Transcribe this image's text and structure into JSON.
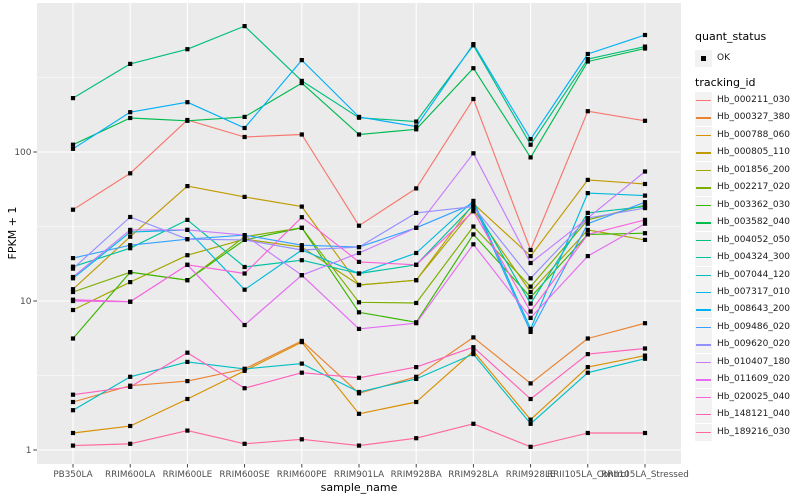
{
  "figure": {
    "x_axis_title": "sample_name",
    "y_axis_title": "FPKM + 1"
  },
  "legend": {
    "quant_status_title": "quant_status",
    "quant_status_value": "OK",
    "tracking_id_title": "tracking_id"
  },
  "chart_data": {
    "type": "line",
    "title": "",
    "xlabel": "sample_name",
    "ylabel": "FPKM + 1",
    "y_scale": "log10",
    "ylim": [
      0.8,
      1000
    ],
    "y_ticks": [
      1,
      10,
      100
    ],
    "y_tick_labels": [
      "1",
      "10",
      "100"
    ],
    "grid": "white-on-gray",
    "panel_background": "#EBEBEB",
    "gridline_color": "#FFFFFF",
    "legend_position": "right",
    "legend_quant_status_title": "quant_status",
    "legend_quant_status_value": "OK",
    "legend_tracking_id_title": "tracking_id",
    "point_shape": "filled-square",
    "point_color": "#000000",
    "categories": [
      "PB350LA",
      "RRIM600LA",
      "RRIM600LE",
      "RRIM600SE",
      "RRIM600PE",
      "RRIM901LA",
      "RRIM928BA",
      "RRIM928LA",
      "RRIM928LE",
      "RRII105LA_Control",
      "RRII105LA_Stressed"
    ],
    "series": [
      {
        "name": "Hb_000211_030",
        "color": "#F8766D",
        "values": [
          41,
          72,
          164,
          126,
          131,
          32,
          57,
          227,
          22,
          188,
          162
        ]
      },
      {
        "name": "Hb_000327_380",
        "color": "#EA8331",
        "values": [
          2.1,
          2.7,
          2.9,
          3.5,
          5.4,
          2.4,
          3.1,
          5.7,
          2.8,
          5.6,
          7.1
        ]
      },
      {
        "name": "Hb_000788_060",
        "color": "#D89000",
        "values": [
          1.3,
          1.45,
          2.2,
          3.4,
          5.3,
          1.75,
          2.1,
          4.6,
          1.6,
          3.6,
          4.3
        ]
      },
      {
        "name": "Hb_000805_110",
        "color": "#C09B00",
        "values": [
          12,
          27,
          59,
          50,
          43,
          12.8,
          13.8,
          45,
          20,
          65,
          61
        ]
      },
      {
        "name": "Hb_001856_200",
        "color": "#A3A500",
        "values": [
          8.7,
          13.4,
          20.3,
          26,
          23,
          12.8,
          13.8,
          41,
          11.5,
          30,
          25.7
        ]
      },
      {
        "name": "Hb_002217_020",
        "color": "#7CAE00",
        "values": [
          11.5,
          15.6,
          13.8,
          27,
          31,
          9.8,
          9.7,
          31.6,
          12.5,
          35,
          44
        ]
      },
      {
        "name": "Hb_003362_030",
        "color": "#39B600",
        "values": [
          5.6,
          15.6,
          13.8,
          25.7,
          31,
          8.4,
          7.2,
          28,
          10.6,
          28,
          28.5
        ]
      },
      {
        "name": "Hb_003582_040",
        "color": "#00BB4E",
        "values": [
          112,
          169,
          162,
          172,
          290,
          131,
          142,
          365,
          92,
          405,
          495
        ]
      },
      {
        "name": "Hb_004052_050",
        "color": "#00BF7D",
        "values": [
          230,
          390,
          490,
          700,
          300,
          170,
          160,
          520,
          112,
          420,
          510
        ]
      },
      {
        "name": "Hb_004324_300",
        "color": "#00C1A3",
        "values": [
          17,
          22.6,
          35,
          16.9,
          18.8,
          15.3,
          17.5,
          44,
          9.6,
          39,
          43
        ]
      },
      {
        "name": "Hb_007044_120",
        "color": "#00BFC4",
        "values": [
          1.85,
          3.1,
          3.9,
          3.5,
          3.8,
          2.45,
          3.0,
          4.4,
          1.5,
          3.3,
          4.1
        ]
      },
      {
        "name": "Hb_007317_010",
        "color": "#00BAE0",
        "values": [
          14.2,
          29,
          30,
          11.9,
          22,
          15.3,
          21,
          47,
          6.5,
          53,
          51
        ]
      },
      {
        "name": "Hb_008643_200",
        "color": "#00B0F6",
        "values": [
          105,
          185,
          216,
          145,
          414,
          172,
          148,
          530,
          122,
          455,
          610
        ]
      },
      {
        "name": "Hb_009486_020",
        "color": "#35A2FF",
        "values": [
          19.4,
          23.7,
          26,
          27.7,
          23.7,
          23,
          31,
          45,
          6.2,
          33,
          46
        ]
      },
      {
        "name": "Hb_009620_020",
        "color": "#9590FF",
        "values": [
          16.5,
          36.6,
          26,
          25.7,
          22,
          23,
          39,
          43,
          14.2,
          36,
          42
        ]
      },
      {
        "name": "Hb_010407_180",
        "color": "#C77CFF",
        "values": [
          14.5,
          30,
          30,
          27.7,
          14.9,
          21,
          31,
          98,
          18,
          36,
          74
        ]
      },
      {
        "name": "Hb_011609_020",
        "color": "#E76BF3",
        "values": [
          10,
          9.9,
          17.5,
          6.9,
          14.9,
          6.5,
          7.1,
          24,
          7.7,
          20,
          33
        ]
      },
      {
        "name": "Hb_020025_040",
        "color": "#FA62DB",
        "values": [
          10.2,
          9.9,
          17.5,
          15.3,
          36.5,
          18.3,
          17.5,
          40,
          8.5,
          28,
          35
        ]
      },
      {
        "name": "Hb_148121_040",
        "color": "#FF62BC",
        "values": [
          2.35,
          2.65,
          4.5,
          2.6,
          3.3,
          3.05,
          3.6,
          4.9,
          2.2,
          4.4,
          4.8
        ]
      },
      {
        "name": "Hb_189216_030",
        "color": "#FF6A98",
        "values": [
          1.07,
          1.1,
          1.35,
          1.1,
          1.18,
          1.07,
          1.2,
          1.5,
          1.05,
          1.3,
          1.3
        ]
      }
    ]
  }
}
